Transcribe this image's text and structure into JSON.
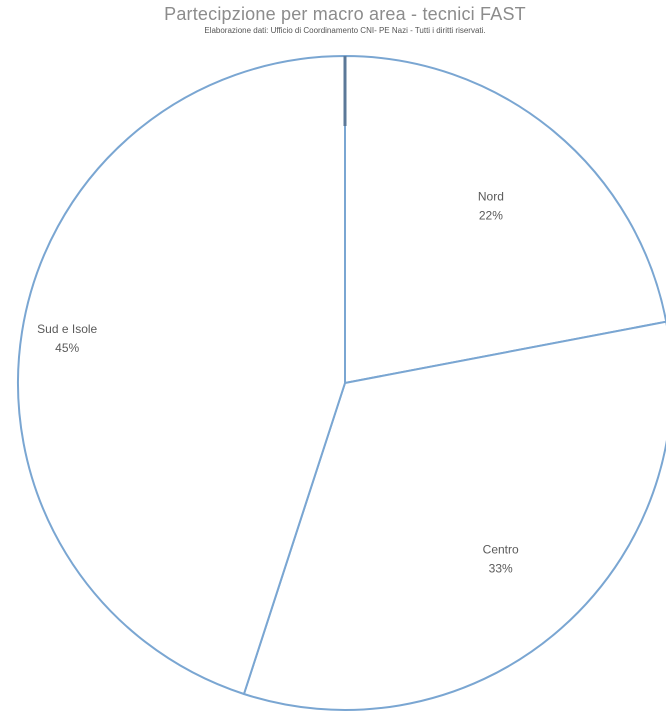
{
  "chart_data": {
    "type": "pie",
    "title": "Partecipzione per macro area - tecnici FAST",
    "subtitle": "Elaborazione dati: Ufficio di Coordinamento CNI- PE Nazi - Tutti i diritti riservati.",
    "slices": [
      {
        "name": "Nord",
        "value": 22,
        "label": "22%"
      },
      {
        "name": "Centro",
        "value": 33,
        "label": "33%"
      },
      {
        "name": "Sud e Isole",
        "value": 45,
        "label": "45%"
      }
    ],
    "start": "top",
    "direction": "clockwise",
    "legend": "none",
    "colors": {
      "fill": "#ffffff",
      "stroke": "#7aa6d2",
      "marker": "#5b7898",
      "text": "#5a5a5a"
    }
  }
}
